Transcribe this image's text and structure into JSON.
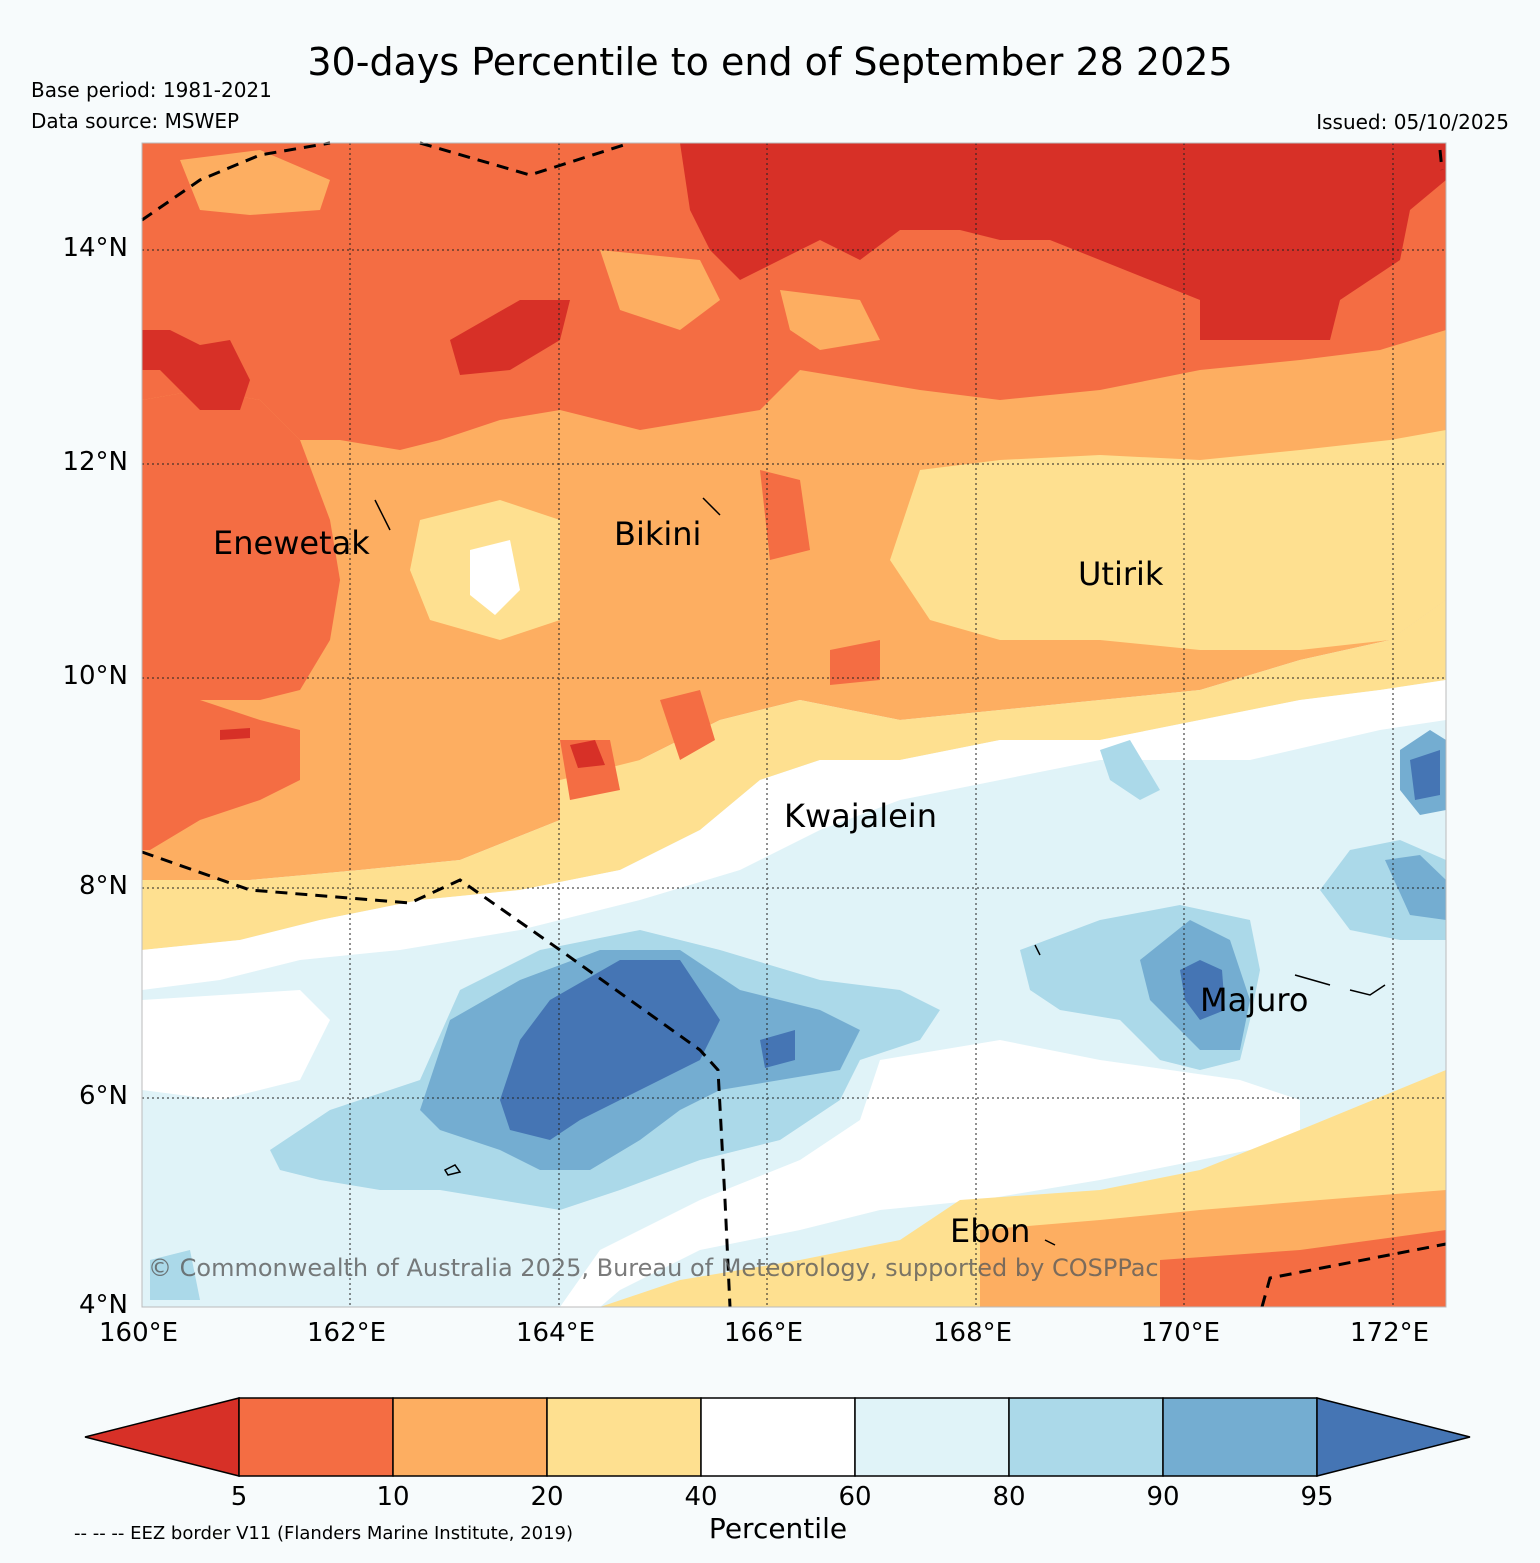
{
  "header": {
    "title": "30-days Percentile to end of September 28 2025",
    "base_period": "Base period: 1981-2021",
    "data_source": "Data source: MSWEP",
    "issued": "Issued: 05/10/2025"
  },
  "map": {
    "lat_ticks": [
      "14°N",
      "12°N",
      "10°N",
      "8°N",
      "6°N",
      "4°N"
    ],
    "lon_ticks": [
      "160°E",
      "162°E",
      "164°E",
      "166°E",
      "168°E",
      "170°E",
      "172°E"
    ],
    "places": {
      "enewetak": "Enewetak",
      "bikini": "Bikini",
      "utirik": "Utirik",
      "kwajalein": "Kwajalein",
      "majuro": "Majuro",
      "ebon": "Ebon"
    },
    "copyright": "© Commonwealth of Australia 2025, Bureau of Meteorology, supported by COSPPac"
  },
  "legend": {
    "labels": [
      "5",
      "10",
      "20",
      "40",
      "60",
      "80",
      "90",
      "95"
    ],
    "title": "Percentile",
    "eez_note": "-- -- -- EEZ border V11 (Flanders Marine Institute, 2019)",
    "colors": [
      "#d73027",
      "#f46d43",
      "#fdae61",
      "#fee090",
      "#ffffff",
      "#e0f3f8",
      "#abd9e9",
      "#74add1",
      "#4575b4"
    ]
  }
}
